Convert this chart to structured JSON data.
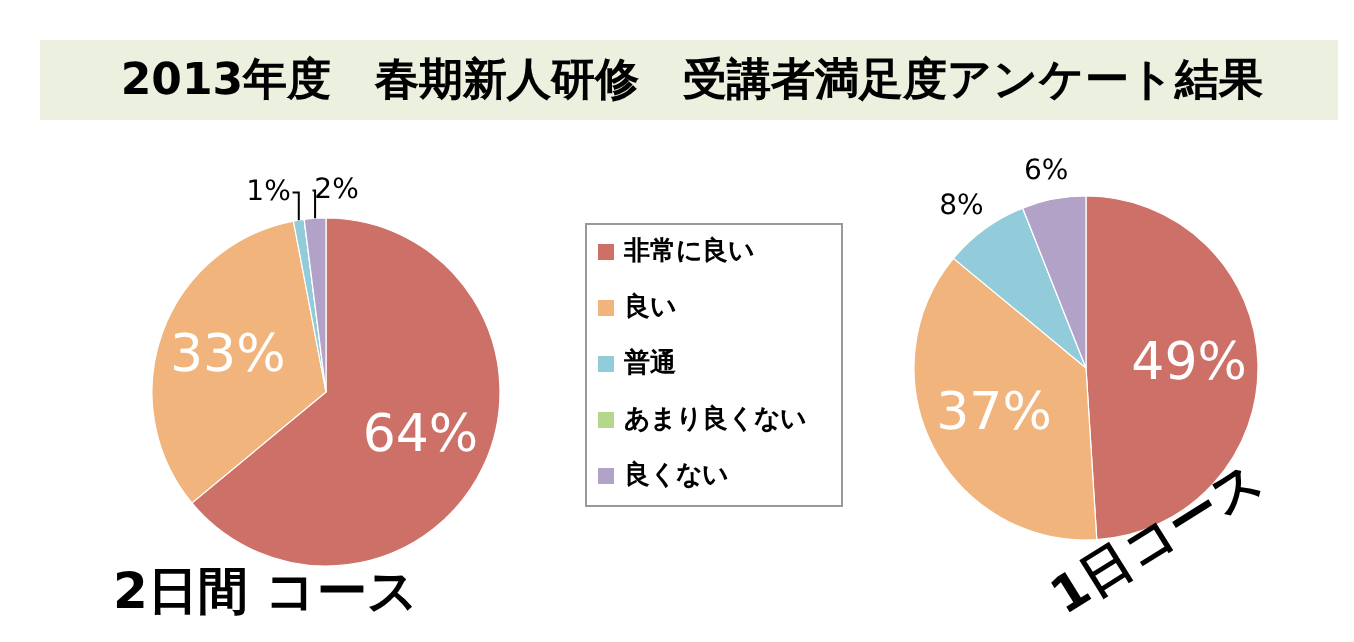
{
  "chart_data": [
    {
      "type": "pie",
      "title": "2013年度　春期新人研修　受講者満足度アンケート結果",
      "subtitle": "2日間 コース",
      "categories": [
        "非常に良い",
        "良い",
        "普通",
        "あまり良くない",
        "良くない"
      ],
      "values": [
        64,
        33,
        1,
        0,
        2
      ],
      "colors": [
        "#cd7068",
        "#f0b47c",
        "#92cbd9",
        "#b5d68b",
        "#b3a2c8"
      ],
      "value_labels": [
        "64%",
        "33%",
        "1%",
        null,
        "2%"
      ],
      "legend": "right"
    },
    {
      "type": "pie",
      "subtitle": "1日コース",
      "categories": [
        null,
        null,
        null,
        null,
        null
      ],
      "values": [
        49,
        37,
        8,
        0,
        6
      ],
      "colors": [
        "#cd7068",
        "#f0b47c",
        "#92cbd9",
        "#b5d68b",
        "#b3a2c8"
      ],
      "value_labels": [
        "49%",
        "37%",
        "8%",
        null,
        "6%"
      ]
    }
  ]
}
